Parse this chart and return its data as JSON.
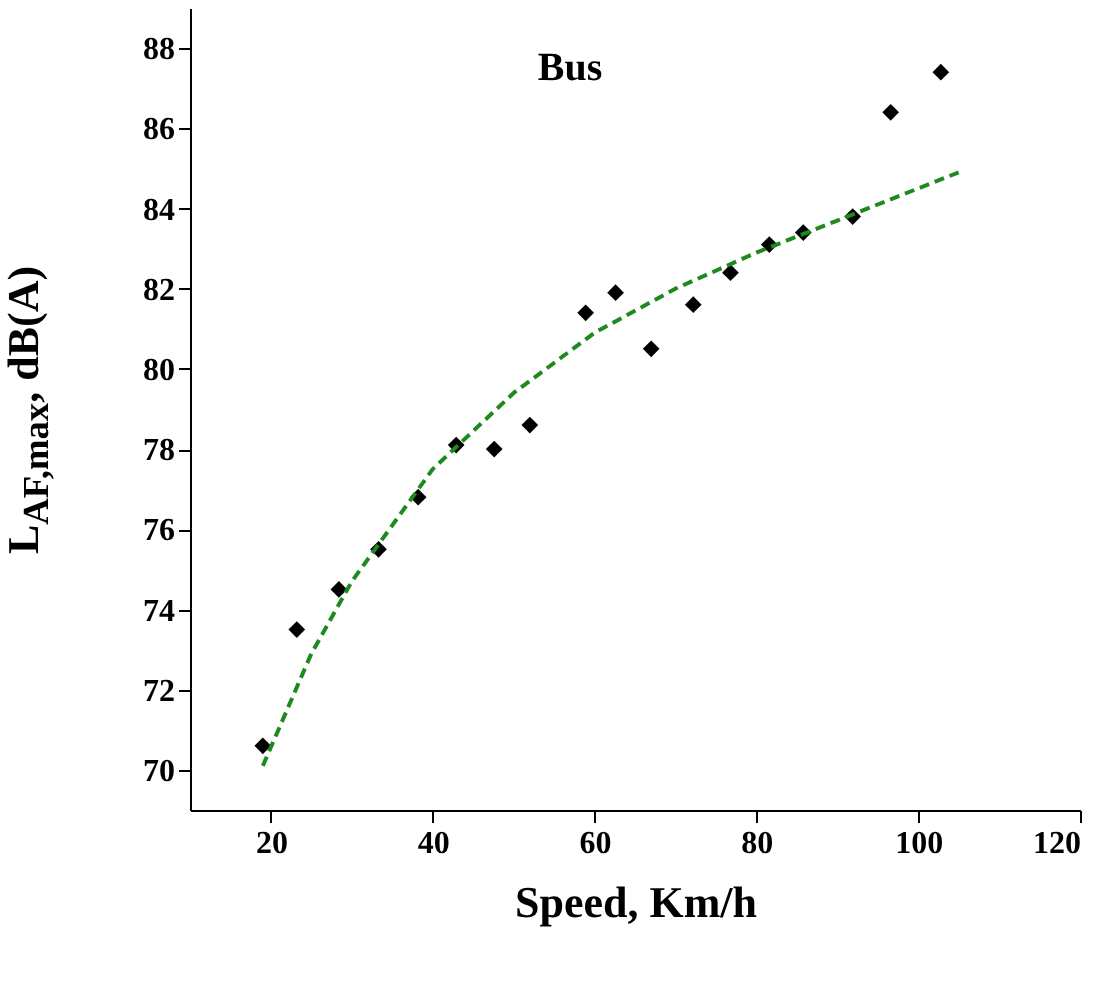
{
  "chart_data": {
    "type": "scatter",
    "xlabel": "Speed, Km/h",
    "ylabel": "L$_{AF,max}$, dB(A)",
    "annotations": [
      "Bus"
    ],
    "xlim": [
      10,
      120
    ],
    "ylim": [
      69,
      89
    ],
    "xticks": [
      20,
      40,
      60,
      80,
      100,
      120
    ],
    "yticks": [
      70,
      72,
      74,
      76,
      78,
      80,
      82,
      84,
      86,
      88
    ],
    "grid": false,
    "series": [
      {
        "color": "#000000",
        "marker": "diamond",
        "x": [
          19.0,
          23.2,
          28.4,
          33.3,
          38.2,
          42.9,
          47.6,
          52.0,
          58.9,
          62.6,
          67.0,
          72.2,
          76.8,
          81.6,
          85.8,
          91.9,
          96.6,
          102.8
        ],
        "values": [
          70.6,
          73.5,
          74.5,
          75.5,
          76.8,
          78.1,
          78.0,
          78.6,
          81.4,
          81.9,
          80.5,
          81.6,
          82.4,
          83.1,
          83.4,
          83.8,
          86.4,
          87.4
        ]
      },
      {
        "type": "line",
        "color": "#1e8a1e",
        "line_style": "dashed",
        "x": [
          19,
          25,
          30,
          40,
          50,
          60,
          70,
          80,
          90,
          100,
          105
        ],
        "values": [
          70.1,
          72.9,
          74.7,
          77.5,
          79.4,
          80.9,
          82.0,
          82.9,
          83.7,
          84.5,
          84.9
        ]
      }
    ]
  }
}
